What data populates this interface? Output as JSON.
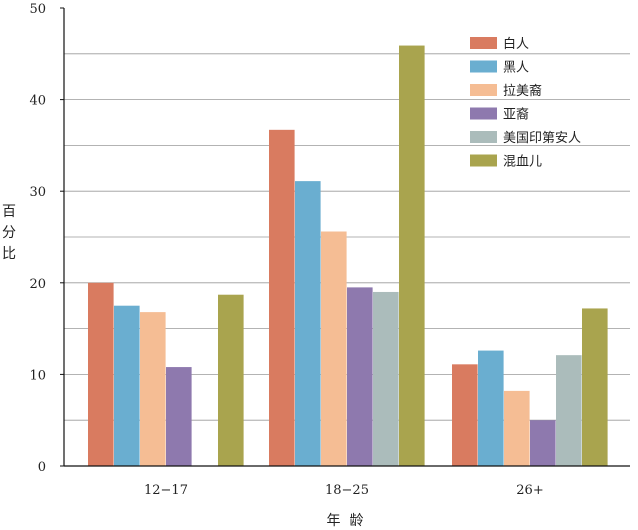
{
  "chart_data": {
    "type": "bar",
    "categories": [
      "12−17",
      "18−25",
      "26+"
    ],
    "series": [
      {
        "name": "白人",
        "color": "#d97b60",
        "values": [
          20.0,
          36.7,
          11.1
        ]
      },
      {
        "name": "黑人",
        "color": "#6aaed0",
        "values": [
          17.5,
          31.1,
          12.6
        ]
      },
      {
        "name": "拉美裔",
        "color": "#f5bd94",
        "values": [
          16.8,
          25.6,
          8.2
        ]
      },
      {
        "name": "亚裔",
        "color": "#8e79ae",
        "values": [
          10.8,
          19.5,
          5.0
        ]
      },
      {
        "name": "美国印第安人",
        "color": "#abbcbb",
        "values": [
          null,
          19.0,
          12.1
        ]
      },
      {
        "name": "混血儿",
        "color": "#a9a44e",
        "values": [
          18.7,
          45.9,
          17.2
        ]
      }
    ],
    "ylim": [
      0,
      50
    ],
    "yticks": [
      0,
      10,
      20,
      30,
      40,
      50
    ],
    "ylabel_chars": [
      "百",
      "分",
      "比"
    ],
    "xlabel": "年  龄",
    "grid": true,
    "legend_position": "top-right"
  }
}
